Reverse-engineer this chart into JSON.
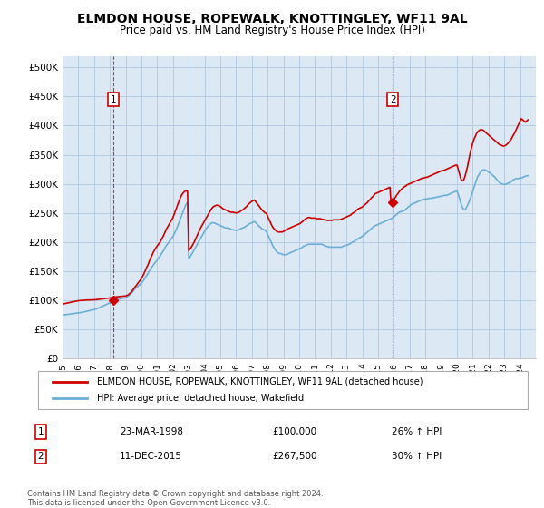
{
  "title": "ELMDON HOUSE, ROPEWALK, KNOTTINGLEY, WF11 9AL",
  "subtitle": "Price paid vs. HM Land Registry's House Price Index (HPI)",
  "title_fontsize": 10,
  "subtitle_fontsize": 8.5,
  "ylabel_ticks": [
    "£0",
    "£50K",
    "£100K",
    "£150K",
    "£200K",
    "£250K",
    "£300K",
    "£350K",
    "£400K",
    "£450K",
    "£500K"
  ],
  "ytick_values": [
    0,
    50000,
    100000,
    150000,
    200000,
    250000,
    300000,
    350000,
    400000,
    450000,
    500000
  ],
  "ylim": [
    0,
    520000
  ],
  "xlim_start": 1995.0,
  "xlim_end": 2025.0,
  "background_color": "#ffffff",
  "plot_bg_color": "#dce9f5",
  "grid_color": "#b0c8e0",
  "hpi_color": "#6baed6",
  "price_color": "#cc0000",
  "sale1_x": 1998.22,
  "sale1_y": 100000,
  "sale2_x": 2015.94,
  "sale2_y": 267500,
  "legend_line1": "ELMDON HOUSE, ROPEWALK, KNOTTINGLEY, WF11 9AL (detached house)",
  "legend_line2": "HPI: Average price, detached house, Wakefield",
  "table_row1": [
    "1",
    "23-MAR-1998",
    "£100,000",
    "26% ↑ HPI"
  ],
  "table_row2": [
    "2",
    "11-DEC-2015",
    "£267,500",
    "30% ↑ HPI"
  ],
  "footnote": "Contains HM Land Registry data © Crown copyright and database right 2024.\nThis data is licensed under the Open Government Licence v3.0.",
  "hpi_data_x": [
    1995.0,
    1995.08,
    1995.17,
    1995.25,
    1995.33,
    1995.42,
    1995.5,
    1995.58,
    1995.67,
    1995.75,
    1995.83,
    1995.92,
    1996.0,
    1996.08,
    1996.17,
    1996.25,
    1996.33,
    1996.42,
    1996.5,
    1996.58,
    1996.67,
    1996.75,
    1996.83,
    1996.92,
    1997.0,
    1997.08,
    1997.17,
    1997.25,
    1997.33,
    1997.42,
    1997.5,
    1997.58,
    1997.67,
    1997.75,
    1997.83,
    1997.92,
    1998.0,
    1998.08,
    1998.17,
    1998.25,
    1998.33,
    1998.42,
    1998.5,
    1998.58,
    1998.67,
    1998.75,
    1998.83,
    1998.92,
    1999.0,
    1999.08,
    1999.17,
    1999.25,
    1999.33,
    1999.42,
    1999.5,
    1999.58,
    1999.67,
    1999.75,
    1999.83,
    1999.92,
    2000.0,
    2000.08,
    2000.17,
    2000.25,
    2000.33,
    2000.42,
    2000.5,
    2000.58,
    2000.67,
    2000.75,
    2000.83,
    2000.92,
    2001.0,
    2001.08,
    2001.17,
    2001.25,
    2001.33,
    2001.42,
    2001.5,
    2001.58,
    2001.67,
    2001.75,
    2001.83,
    2001.92,
    2002.0,
    2002.08,
    2002.17,
    2002.25,
    2002.33,
    2002.42,
    2002.5,
    2002.58,
    2002.67,
    2002.75,
    2002.83,
    2002.92,
    2003.0,
    2003.08,
    2003.17,
    2003.25,
    2003.33,
    2003.42,
    2003.5,
    2003.58,
    2003.67,
    2003.75,
    2003.83,
    2003.92,
    2004.0,
    2004.08,
    2004.17,
    2004.25,
    2004.33,
    2004.42,
    2004.5,
    2004.58,
    2004.67,
    2004.75,
    2004.83,
    2004.92,
    2005.0,
    2005.08,
    2005.17,
    2005.25,
    2005.33,
    2005.42,
    2005.5,
    2005.58,
    2005.67,
    2005.75,
    2005.83,
    2005.92,
    2006.0,
    2006.08,
    2006.17,
    2006.25,
    2006.33,
    2006.42,
    2006.5,
    2006.58,
    2006.67,
    2006.75,
    2006.83,
    2006.92,
    2007.0,
    2007.08,
    2007.17,
    2007.25,
    2007.33,
    2007.42,
    2007.5,
    2007.58,
    2007.67,
    2007.75,
    2007.83,
    2007.92,
    2008.0,
    2008.08,
    2008.17,
    2008.25,
    2008.33,
    2008.42,
    2008.5,
    2008.58,
    2008.67,
    2008.75,
    2008.83,
    2008.92,
    2009.0,
    2009.08,
    2009.17,
    2009.25,
    2009.33,
    2009.42,
    2009.5,
    2009.58,
    2009.67,
    2009.75,
    2009.83,
    2009.92,
    2010.0,
    2010.08,
    2010.17,
    2010.25,
    2010.33,
    2010.42,
    2010.5,
    2010.58,
    2010.67,
    2010.75,
    2010.83,
    2010.92,
    2011.0,
    2011.08,
    2011.17,
    2011.25,
    2011.33,
    2011.42,
    2011.5,
    2011.58,
    2011.67,
    2011.75,
    2011.83,
    2011.92,
    2012.0,
    2012.08,
    2012.17,
    2012.25,
    2012.33,
    2012.42,
    2012.5,
    2012.58,
    2012.67,
    2012.75,
    2012.83,
    2012.92,
    2013.0,
    2013.08,
    2013.17,
    2013.25,
    2013.33,
    2013.42,
    2013.5,
    2013.58,
    2013.67,
    2013.75,
    2013.83,
    2013.92,
    2014.0,
    2014.08,
    2014.17,
    2014.25,
    2014.33,
    2014.42,
    2014.5,
    2014.58,
    2014.67,
    2014.75,
    2014.83,
    2014.92,
    2015.0,
    2015.08,
    2015.17,
    2015.25,
    2015.33,
    2015.42,
    2015.5,
    2015.58,
    2015.67,
    2015.75,
    2015.83,
    2015.92,
    2016.0,
    2016.08,
    2016.17,
    2016.25,
    2016.33,
    2016.42,
    2016.5,
    2016.58,
    2016.67,
    2016.75,
    2016.83,
    2016.92,
    2017.0,
    2017.08,
    2017.17,
    2017.25,
    2017.33,
    2017.42,
    2017.5,
    2017.58,
    2017.67,
    2017.75,
    2017.83,
    2017.92,
    2018.0,
    2018.08,
    2018.17,
    2018.25,
    2018.33,
    2018.42,
    2018.5,
    2018.58,
    2018.67,
    2018.75,
    2018.83,
    2018.92,
    2019.0,
    2019.08,
    2019.17,
    2019.25,
    2019.33,
    2019.42,
    2019.5,
    2019.58,
    2019.67,
    2019.75,
    2019.83,
    2019.92,
    2020.0,
    2020.08,
    2020.17,
    2020.25,
    2020.33,
    2020.42,
    2020.5,
    2020.58,
    2020.67,
    2020.75,
    2020.83,
    2020.92,
    2021.0,
    2021.08,
    2021.17,
    2021.25,
    2021.33,
    2021.42,
    2021.5,
    2021.58,
    2021.67,
    2021.75,
    2021.83,
    2021.92,
    2022.0,
    2022.08,
    2022.17,
    2022.25,
    2022.33,
    2022.42,
    2022.5,
    2022.58,
    2022.67,
    2022.75,
    2022.83,
    2022.92,
    2023.0,
    2023.08,
    2023.17,
    2023.25,
    2023.33,
    2023.42,
    2023.5,
    2023.58,
    2023.67,
    2023.75,
    2023.83,
    2023.92,
    2024.0,
    2024.08,
    2024.17,
    2024.25,
    2024.33,
    2024.5
  ],
  "hpi_data_y": [
    74000,
    74500,
    74800,
    75000,
    75200,
    75500,
    76000,
    76200,
    76500,
    77000,
    77200,
    77500,
    78000,
    78200,
    78500,
    79000,
    79500,
    80000,
    80500,
    81000,
    81500,
    82000,
    82500,
    83000,
    83500,
    84000,
    85000,
    86000,
    87000,
    88000,
    89000,
    90000,
    91000,
    92000,
    93000,
    94000,
    95000,
    96000,
    97000,
    98000,
    99000,
    100000,
    101000,
    101500,
    102000,
    102500,
    103000,
    103500,
    104000,
    105000,
    107000,
    109000,
    111000,
    113000,
    116000,
    119000,
    121000,
    123000,
    125000,
    127000,
    129000,
    132000,
    135000,
    139000,
    142000,
    146000,
    150000,
    153000,
    157000,
    160000,
    163000,
    166000,
    169000,
    172000,
    175000,
    179000,
    182000,
    186000,
    190000,
    194000,
    197000,
    200000,
    203000,
    206000,
    209000,
    214000,
    219000,
    224000,
    230000,
    236000,
    242000,
    248000,
    254000,
    260000,
    265000,
    268000,
    171000,
    174000,
    178000,
    182000,
    186000,
    190000,
    194000,
    198000,
    202000,
    206000,
    210000,
    214000,
    218000,
    222000,
    225000,
    228000,
    230000,
    232000,
    233000,
    233000,
    232000,
    231000,
    230000,
    229000,
    228000,
    227000,
    226000,
    225000,
    224000,
    224000,
    224000,
    223000,
    222000,
    221000,
    221000,
    220000,
    220000,
    220000,
    221000,
    222000,
    223000,
    224000,
    225000,
    226000,
    228000,
    229000,
    231000,
    232000,
    233000,
    234000,
    235000,
    233000,
    231000,
    228000,
    226000,
    224000,
    222000,
    221000,
    220000,
    218000,
    213000,
    208000,
    203000,
    198000,
    193000,
    189000,
    186000,
    183000,
    181000,
    180000,
    180000,
    179000,
    178000,
    178000,
    178000,
    179000,
    180000,
    181000,
    182000,
    183000,
    184000,
    185000,
    186000,
    187000,
    188000,
    189000,
    190000,
    192000,
    193000,
    194000,
    195000,
    196000,
    196000,
    196000,
    196000,
    196000,
    196000,
    196000,
    196000,
    196000,
    196000,
    196000,
    195000,
    194000,
    193000,
    192000,
    192000,
    191000,
    191000,
    191000,
    191000,
    191000,
    191000,
    191000,
    191000,
    191000,
    191000,
    192000,
    193000,
    194000,
    194000,
    195000,
    196000,
    197000,
    199000,
    200000,
    201000,
    203000,
    204000,
    206000,
    207000,
    208000,
    210000,
    211000,
    213000,
    215000,
    217000,
    219000,
    221000,
    223000,
    225000,
    227000,
    228000,
    229000,
    230000,
    231000,
    232000,
    233000,
    234000,
    235000,
    236000,
    237000,
    238000,
    239000,
    240000,
    241000,
    243000,
    245000,
    247000,
    249000,
    251000,
    252000,
    252000,
    253000,
    254000,
    256000,
    258000,
    260000,
    262000,
    264000,
    265000,
    266000,
    267000,
    268000,
    269000,
    270000,
    271000,
    272000,
    273000,
    273000,
    274000,
    274000,
    274000,
    275000,
    275000,
    275000,
    276000,
    276000,
    277000,
    277000,
    278000,
    278000,
    279000,
    279000,
    280000,
    280000,
    280000,
    281000,
    282000,
    283000,
    284000,
    285000,
    286000,
    287000,
    288000,
    282000,
    274000,
    266000,
    260000,
    256000,
    255000,
    258000,
    263000,
    268000,
    274000,
    280000,
    287000,
    294000,
    301000,
    308000,
    313000,
    317000,
    320000,
    323000,
    324000,
    324000,
    323000,
    322000,
    320000,
    319000,
    317000,
    315000,
    313000,
    311000,
    308000,
    305000,
    303000,
    301000,
    300000,
    299000,
    299000,
    299000,
    300000,
    301000,
    302000,
    303000,
    305000,
    307000,
    308000,
    309000,
    309000,
    309000,
    310000,
    310000,
    311000,
    312000,
    313000,
    314000
  ],
  "price_data_x": [
    1995.0,
    1995.08,
    1995.17,
    1995.25,
    1995.33,
    1995.42,
    1995.5,
    1995.58,
    1995.67,
    1995.75,
    1995.83,
    1995.92,
    1996.0,
    1996.08,
    1996.17,
    1996.25,
    1996.33,
    1996.42,
    1996.5,
    1996.58,
    1996.67,
    1996.75,
    1996.83,
    1996.92,
    1997.0,
    1997.08,
    1997.17,
    1997.25,
    1997.33,
    1997.42,
    1997.5,
    1997.58,
    1997.67,
    1997.75,
    1997.83,
    1997.92,
    1998.0,
    1998.08,
    1998.17,
    1998.25,
    1998.33,
    1998.42,
    1998.5,
    1998.58,
    1998.67,
    1998.75,
    1998.83,
    1998.92,
    1999.0,
    1999.08,
    1999.17,
    1999.25,
    1999.33,
    1999.42,
    1999.5,
    1999.58,
    1999.67,
    1999.75,
    1999.83,
    1999.92,
    2000.0,
    2000.08,
    2000.17,
    2000.25,
    2000.33,
    2000.42,
    2000.5,
    2000.58,
    2000.67,
    2000.75,
    2000.83,
    2000.92,
    2001.0,
    2001.08,
    2001.17,
    2001.25,
    2001.33,
    2001.42,
    2001.5,
    2001.58,
    2001.67,
    2001.75,
    2001.83,
    2001.92,
    2002.0,
    2002.08,
    2002.17,
    2002.25,
    2002.33,
    2002.42,
    2002.5,
    2002.58,
    2002.67,
    2002.75,
    2002.83,
    2002.92,
    2003.0,
    2003.08,
    2003.17,
    2003.25,
    2003.33,
    2003.42,
    2003.5,
    2003.58,
    2003.67,
    2003.75,
    2003.83,
    2003.92,
    2004.0,
    2004.08,
    2004.17,
    2004.25,
    2004.33,
    2004.42,
    2004.5,
    2004.58,
    2004.67,
    2004.75,
    2004.83,
    2004.92,
    2005.0,
    2005.08,
    2005.17,
    2005.25,
    2005.33,
    2005.42,
    2005.5,
    2005.58,
    2005.67,
    2005.75,
    2005.83,
    2005.92,
    2006.0,
    2006.08,
    2006.17,
    2006.25,
    2006.33,
    2006.42,
    2006.5,
    2006.58,
    2006.67,
    2006.75,
    2006.83,
    2006.92,
    2007.0,
    2007.08,
    2007.17,
    2007.25,
    2007.33,
    2007.42,
    2007.5,
    2007.58,
    2007.67,
    2007.75,
    2007.83,
    2007.92,
    2008.0,
    2008.08,
    2008.17,
    2008.25,
    2008.33,
    2008.42,
    2008.5,
    2008.58,
    2008.67,
    2008.75,
    2008.83,
    2008.92,
    2009.0,
    2009.08,
    2009.17,
    2009.25,
    2009.33,
    2009.42,
    2009.5,
    2009.58,
    2009.67,
    2009.75,
    2009.83,
    2009.92,
    2010.0,
    2010.08,
    2010.17,
    2010.25,
    2010.33,
    2010.42,
    2010.5,
    2010.58,
    2010.67,
    2010.75,
    2010.83,
    2010.92,
    2011.0,
    2011.08,
    2011.17,
    2011.25,
    2011.33,
    2011.42,
    2011.5,
    2011.58,
    2011.67,
    2011.75,
    2011.83,
    2011.92,
    2012.0,
    2012.08,
    2012.17,
    2012.25,
    2012.33,
    2012.42,
    2012.5,
    2012.58,
    2012.67,
    2012.75,
    2012.83,
    2012.92,
    2013.0,
    2013.08,
    2013.17,
    2013.25,
    2013.33,
    2013.42,
    2013.5,
    2013.58,
    2013.67,
    2013.75,
    2013.83,
    2013.92,
    2014.0,
    2014.08,
    2014.17,
    2014.25,
    2014.33,
    2014.42,
    2014.5,
    2014.58,
    2014.67,
    2014.75,
    2014.83,
    2014.92,
    2015.0,
    2015.08,
    2015.17,
    2015.25,
    2015.33,
    2015.42,
    2015.5,
    2015.58,
    2015.67,
    2015.75,
    2015.83,
    2015.92,
    2016.0,
    2016.08,
    2016.17,
    2016.25,
    2016.33,
    2016.42,
    2016.5,
    2016.58,
    2016.67,
    2016.75,
    2016.83,
    2016.92,
    2017.0,
    2017.08,
    2017.17,
    2017.25,
    2017.33,
    2017.42,
    2017.5,
    2017.58,
    2017.67,
    2017.75,
    2017.83,
    2017.92,
    2018.0,
    2018.08,
    2018.17,
    2018.25,
    2018.33,
    2018.42,
    2018.5,
    2018.58,
    2018.67,
    2018.75,
    2018.83,
    2018.92,
    2019.0,
    2019.08,
    2019.17,
    2019.25,
    2019.33,
    2019.42,
    2019.5,
    2019.58,
    2019.67,
    2019.75,
    2019.83,
    2019.92,
    2020.0,
    2020.08,
    2020.17,
    2020.25,
    2020.33,
    2020.42,
    2020.5,
    2020.58,
    2020.67,
    2020.75,
    2020.83,
    2020.92,
    2021.0,
    2021.08,
    2021.17,
    2021.25,
    2021.33,
    2021.42,
    2021.5,
    2021.58,
    2021.67,
    2021.75,
    2021.83,
    2021.92,
    2022.0,
    2022.08,
    2022.17,
    2022.25,
    2022.33,
    2022.42,
    2022.5,
    2022.58,
    2022.67,
    2022.75,
    2022.83,
    2022.92,
    2023.0,
    2023.08,
    2023.17,
    2023.25,
    2023.33,
    2023.42,
    2023.5,
    2023.58,
    2023.67,
    2023.75,
    2023.83,
    2023.92,
    2024.0,
    2024.08,
    2024.17,
    2024.25,
    2024.33,
    2024.5
  ],
  "price_data_y": [
    93000,
    93500,
    94000,
    94500,
    95000,
    95500,
    96000,
    96500,
    97000,
    97500,
    98000,
    98500,
    98800,
    99000,
    99200,
    99500,
    99700,
    99800,
    99900,
    100000,
    100000,
    100000,
    100100,
    100200,
    100300,
    100500,
    100700,
    101000,
    101300,
    101700,
    102000,
    102300,
    102600,
    102800,
    103000,
    103200,
    103500,
    104000,
    104500,
    105000,
    105300,
    105500,
    105700,
    106000,
    106200,
    106400,
    106600,
    106800,
    107000,
    108000,
    109000,
    111000,
    113000,
    116000,
    119000,
    122000,
    125000,
    128000,
    131000,
    134000,
    137000,
    141000,
    146000,
    151000,
    156000,
    161000,
    167000,
    172000,
    177000,
    182000,
    186000,
    190000,
    193000,
    196000,
    199000,
    203000,
    207000,
    212000,
    217000,
    222000,
    226000,
    230000,
    234000,
    238000,
    242000,
    248000,
    255000,
    261000,
    267000,
    273000,
    278000,
    282000,
    285000,
    287000,
    288000,
    287000,
    185000,
    188000,
    191000,
    195000,
    199000,
    204000,
    209000,
    214000,
    219000,
    224000,
    228000,
    232000,
    236000,
    240000,
    244000,
    248000,
    252000,
    256000,
    259000,
    261000,
    262000,
    263000,
    263000,
    262000,
    261000,
    259000,
    257000,
    256000,
    255000,
    254000,
    253000,
    252000,
    251000,
    251000,
    251000,
    250000,
    250000,
    250000,
    251000,
    252000,
    254000,
    255000,
    257000,
    259000,
    261000,
    264000,
    266000,
    268000,
    270000,
    271000,
    272000,
    269000,
    266000,
    263000,
    260000,
    257000,
    254000,
    252000,
    250000,
    249000,
    244000,
    239000,
    234000,
    229000,
    225000,
    222000,
    220000,
    218000,
    217000,
    217000,
    217000,
    217000,
    218000,
    219000,
    221000,
    222000,
    223000,
    224000,
    225000,
    226000,
    227000,
    228000,
    229000,
    230000,
    231000,
    232000,
    234000,
    236000,
    238000,
    240000,
    241000,
    242000,
    242000,
    241000,
    241000,
    241000,
    241000,
    240000,
    240000,
    240000,
    240000,
    239000,
    239000,
    238000,
    238000,
    237000,
    237000,
    237000,
    237000,
    237000,
    238000,
    238000,
    238000,
    238000,
    238000,
    238000,
    239000,
    240000,
    241000,
    242000,
    243000,
    244000,
    245000,
    246000,
    248000,
    250000,
    251000,
    253000,
    255000,
    257000,
    258000,
    259000,
    260000,
    262000,
    264000,
    266000,
    268000,
    271000,
    273000,
    276000,
    278000,
    281000,
    283000,
    284000,
    285000,
    286000,
    287000,
    288000,
    289000,
    290000,
    291000,
    292000,
    293000,
    294000,
    264000,
    267500,
    272000,
    276000,
    280000,
    283000,
    286000,
    289000,
    291000,
    293000,
    295000,
    296000,
    298000,
    299000,
    300000,
    301000,
    302000,
    303000,
    304000,
    305000,
    306000,
    307000,
    308000,
    309000,
    310000,
    310000,
    311000,
    311000,
    312000,
    313000,
    314000,
    315000,
    316000,
    317000,
    318000,
    319000,
    320000,
    321000,
    322000,
    323000,
    323000,
    324000,
    325000,
    326000,
    327000,
    328000,
    329000,
    330000,
    331000,
    332000,
    332000,
    325000,
    316000,
    308000,
    305000,
    306000,
    312000,
    320000,
    330000,
    341000,
    352000,
    362000,
    370000,
    377000,
    382000,
    387000,
    390000,
    392000,
    393000,
    393000,
    392000,
    390000,
    388000,
    386000,
    384000,
    382000,
    380000,
    378000,
    376000,
    374000,
    372000,
    370000,
    368000,
    367000,
    366000,
    365000,
    365000,
    366000,
    368000,
    370000,
    373000,
    376000,
    380000,
    384000,
    388000,
    393000,
    398000,
    403000,
    408000,
    412000,
    410000,
    408000,
    406000,
    410000
  ]
}
